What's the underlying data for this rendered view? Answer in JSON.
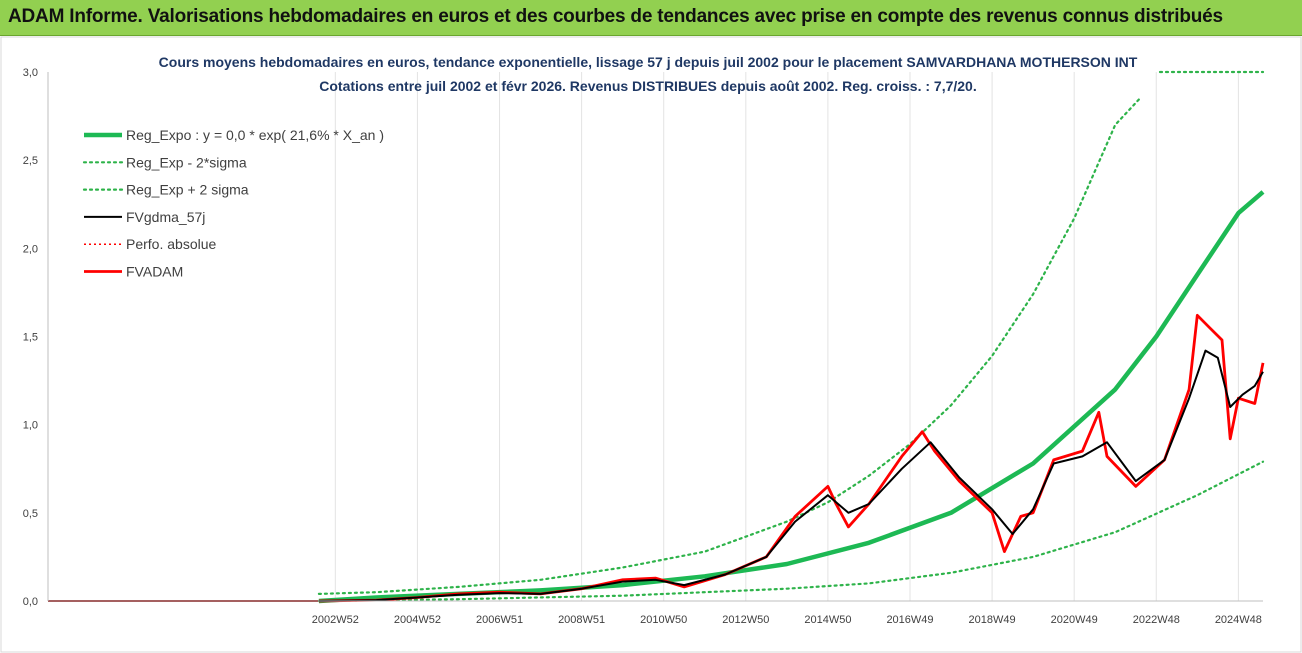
{
  "header": {
    "title": "ADAM Informe. Valorisations hebdomadaires en euros et des courbes de tendances avec prise en compte des revenus connus distribués",
    "background": "#92d050"
  },
  "chart_data": {
    "type": "line",
    "title": "Cours moyens hebdomadaires en euros, tendance exponentielle, lissage 57 j depuis juil 2002 pour le placement SAMVARDHANA MOTHERSON INT",
    "subtitle": "Cotations entre juil 2002 et févr 2026.  Revenus DISTRIBUES depuis août 2002. Reg. croiss. : 7,7/20.",
    "xlabel": "",
    "ylabel": "",
    "ylim": [
      0,
      3.0
    ],
    "xlim": [
      1996.0,
      2025.6
    ],
    "yticks": [
      "0,0",
      "0,5",
      "1,0",
      "1,5",
      "2,0",
      "2,5",
      "3,0"
    ],
    "xticks": [
      {
        "label": "2002W52",
        "x": 2003.0
      },
      {
        "label": "2004W52",
        "x": 2005.0
      },
      {
        "label": "2006W51",
        "x": 2007.0
      },
      {
        "label": "2008W51",
        "x": 2009.0
      },
      {
        "label": "2010W50",
        "x": 2011.0
      },
      {
        "label": "2012W50",
        "x": 2013.0
      },
      {
        "label": "2014W50",
        "x": 2015.0
      },
      {
        "label": "2016W49",
        "x": 2017.0
      },
      {
        "label": "2018W49",
        "x": 2019.0
      },
      {
        "label": "2020W49",
        "x": 2021.0
      },
      {
        "label": "2022W48",
        "x": 2023.0
      },
      {
        "label": "2024W48",
        "x": 2025.0
      }
    ],
    "grid": "vertical",
    "legend_position": "top-left",
    "colors": {
      "trend": "#1db954",
      "band": "#2eb34a",
      "smooth": "#000000",
      "perf": "#ff0000",
      "fvadam": "#ff0000"
    },
    "series": [
      {
        "name": "Reg_Expo : y = 0,0 * exp( 21,6% *  X_an )",
        "style": "solid-thick",
        "x": [
          2002.6,
          2004,
          2006,
          2008,
          2010,
          2012,
          2014,
          2016,
          2018,
          2020,
          2022,
          2023,
          2024,
          2025,
          2025.6
        ],
        "y": [
          0.0,
          0.02,
          0.04,
          0.06,
          0.09,
          0.14,
          0.21,
          0.33,
          0.5,
          0.78,
          1.2,
          1.5,
          1.85,
          2.2,
          2.32
        ]
      },
      {
        "name": "Reg_Exp - 2*sigma",
        "style": "dotted",
        "x": [
          2002.6,
          2006,
          2010,
          2014,
          2016,
          2018,
          2020,
          2022,
          2024,
          2025.6
        ],
        "y": [
          0.0,
          0.01,
          0.03,
          0.07,
          0.1,
          0.16,
          0.25,
          0.39,
          0.6,
          0.79
        ]
      },
      {
        "name": "Reg_Exp + 2 sigma",
        "style": "dotted",
        "x": [
          2002.6,
          2004,
          2006,
          2008,
          2010,
          2012,
          2014,
          2015,
          2016,
          2017,
          2018,
          2019,
          2020,
          2021,
          2022,
          2022.6
        ],
        "y": [
          0.04,
          0.05,
          0.08,
          0.12,
          0.19,
          0.28,
          0.45,
          0.56,
          0.71,
          0.89,
          1.11,
          1.39,
          1.74,
          2.17,
          2.7,
          2.85
        ]
      },
      {
        "name": "FVgdma_57j",
        "style": "solid",
        "x": [
          2002.6,
          2004,
          2005,
          2006,
          2007,
          2008,
          2009,
          2010,
          2010.8,
          2011.5,
          2012.5,
          2013.5,
          2014.2,
          2015,
          2015.5,
          2016,
          2016.8,
          2017.5,
          2018.2,
          2019,
          2019.5,
          2020.0,
          2020.5,
          2021.2,
          2021.8,
          2022.5,
          2023.2,
          2023.8,
          2024.2,
          2024.5,
          2024.8,
          2025.1,
          2025.4,
          2025.6
        ],
        "y": [
          0.0,
          0.005,
          0.02,
          0.035,
          0.045,
          0.04,
          0.07,
          0.11,
          0.12,
          0.09,
          0.15,
          0.25,
          0.45,
          0.6,
          0.5,
          0.55,
          0.75,
          0.9,
          0.7,
          0.52,
          0.38,
          0.52,
          0.78,
          0.82,
          0.9,
          0.68,
          0.8,
          1.15,
          1.42,
          1.38,
          1.1,
          1.17,
          1.22,
          1.3
        ]
      },
      {
        "name": "Perfo. absolue",
        "style": "dotted",
        "x": [],
        "y": []
      },
      {
        "name": "FVADAM",
        "style": "solid-thick",
        "x": [
          2002.6,
          2004,
          2005,
          2006,
          2007,
          2008,
          2009,
          2010,
          2010.8,
          2011.5,
          2012.5,
          2013.5,
          2014.2,
          2015,
          2015.2,
          2015.5,
          2016,
          2016.8,
          2017.3,
          2017.6,
          2018.2,
          2019,
          2019.3,
          2019.7,
          2020.0,
          2020.5,
          2021.2,
          2021.6,
          2021.8,
          2022.5,
          2023.2,
          2023.8,
          2024.0,
          2024.3,
          2024.6,
          2024.8,
          2025.0,
          2025.4,
          2025.6
        ],
        "y": [
          0.0,
          0.005,
          0.02,
          0.04,
          0.05,
          0.04,
          0.07,
          0.12,
          0.13,
          0.08,
          0.15,
          0.25,
          0.48,
          0.65,
          0.55,
          0.42,
          0.55,
          0.82,
          0.96,
          0.85,
          0.68,
          0.5,
          0.28,
          0.48,
          0.5,
          0.8,
          0.85,
          1.07,
          0.82,
          0.65,
          0.8,
          1.2,
          1.62,
          1.55,
          1.48,
          0.92,
          1.15,
          1.12,
          1.35
        ]
      }
    ]
  }
}
